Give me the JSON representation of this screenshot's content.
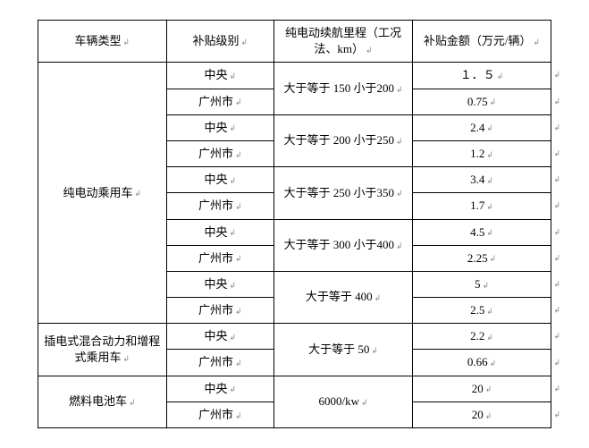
{
  "headers": {
    "vehicle_type": "车辆类型",
    "subsidy_level": "补贴级别",
    "range": "纯电动续航里程（工况法、km）",
    "amount": "补贴金额（万元/辆）"
  },
  "levels": {
    "central": "中央",
    "guangzhou": "广州市"
  },
  "vehicle_types": {
    "pure_ev": "纯电动乘用车",
    "phev": "插电式混合动力和增程式乘用车",
    "fuel_cell": "燃料电池车"
  },
  "ranges": {
    "r1": "大于等于 150 小于200",
    "r2": "大于等于 200 小于250",
    "r3": "大于等于 250 小于350",
    "r4": "大于等于 300 小于400",
    "r5": "大于等于 400",
    "r6": "大于等于 50",
    "r7": "6000/kw"
  },
  "amounts": {
    "a1": "１．５",
    "a2": "0.75",
    "a3": "2.4",
    "a4": "1.2",
    "a5": "3.4",
    "a6": "1.7",
    "a7": "4.5",
    "a8": "2.25",
    "a9": "5",
    "a10": "2.5",
    "a11": "2.2",
    "a12": "0.66",
    "a13": "20",
    "a14": "20"
  },
  "marks": {
    "ret": "↲",
    "side": "↲"
  }
}
